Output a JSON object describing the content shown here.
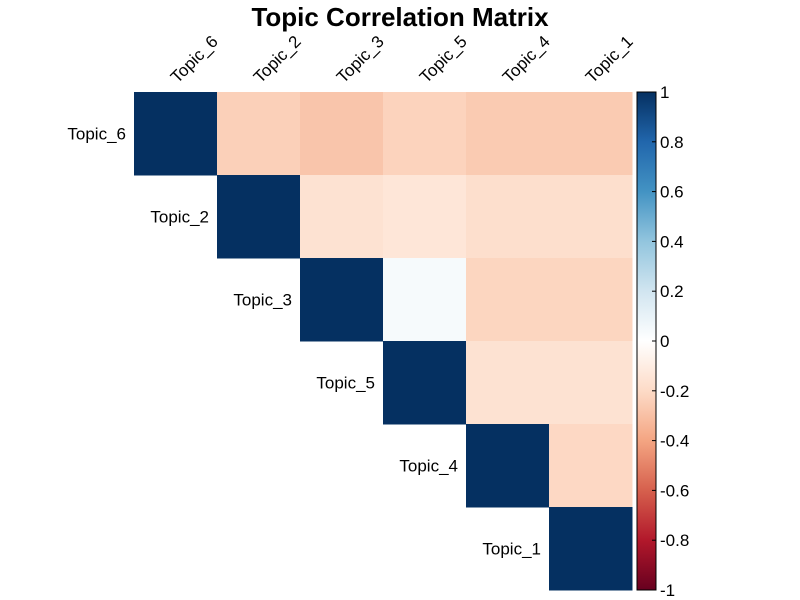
{
  "chart_data": {
    "type": "heatmap",
    "title": "Topic Correlation Matrix",
    "variables": [
      "Topic_6",
      "Topic_2",
      "Topic_3",
      "Topic_5",
      "Topic_4",
      "Topic_1"
    ],
    "layout": "upper-triangle",
    "values": [
      [
        1.0,
        -0.24,
        -0.28,
        -0.23,
        -0.26,
        -0.26
      ],
      [
        null,
        1.0,
        -0.16,
        -0.14,
        -0.18,
        -0.18
      ],
      [
        null,
        null,
        1.0,
        0.04,
        -0.22,
        -0.22
      ],
      [
        null,
        null,
        null,
        1.0,
        -0.16,
        -0.16
      ],
      [
        null,
        null,
        null,
        null,
        1.0,
        -0.21
      ],
      [
        null,
        null,
        null,
        null,
        null,
        1.0
      ]
    ],
    "colorbar": {
      "range": [
        -1,
        1
      ],
      "ticks": [
        1,
        0.8,
        0.6,
        0.4,
        0.2,
        0,
        -0.2,
        -0.4,
        -0.6,
        -0.8,
        -1
      ],
      "tick_labels": [
        "1",
        "0.8",
        "0.6",
        "0.4",
        "0.2",
        "0",
        "-0.2",
        "-0.4",
        "-0.6",
        "-0.8",
        "-1"
      ],
      "palette": [
        "#67001F",
        "#B2182B",
        "#D6604D",
        "#F4A582",
        "#FDDBC7",
        "#FFFFFF",
        "#D1E5F0",
        "#92C5DE",
        "#4393C3",
        "#2166AC",
        "#053061"
      ]
    },
    "tick_label_placement": "top (rotated) and diagonal-left",
    "grid": false
  }
}
